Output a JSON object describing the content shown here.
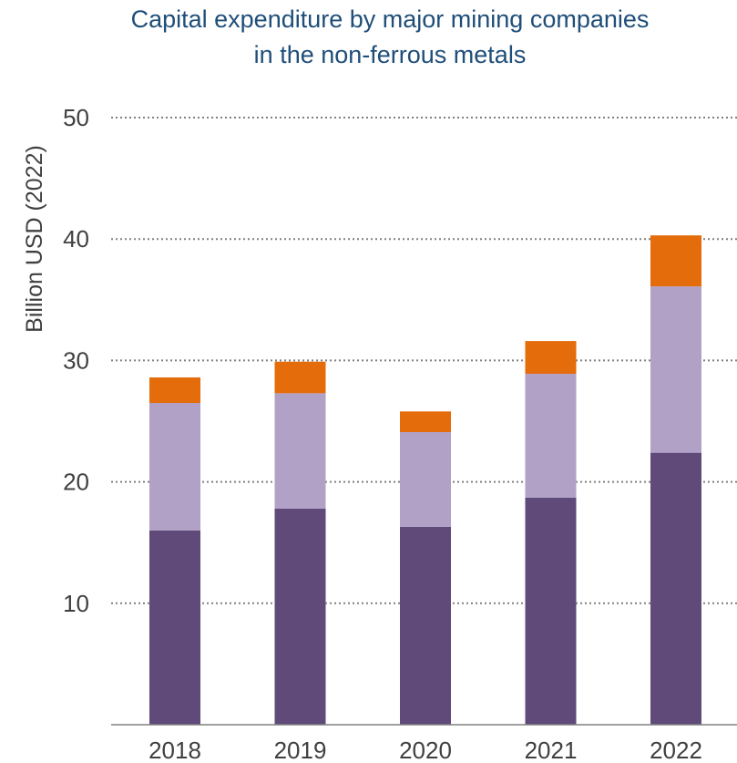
{
  "chart_data": {
    "type": "bar",
    "stacked": true,
    "title_lines": [
      "Capital expenditure by major mining companies",
      "in the non-ferrous metals"
    ],
    "xlabel": "",
    "ylabel": "Billion USD (2022)",
    "categories": [
      "2018",
      "2019",
      "2020",
      "2021",
      "2022"
    ],
    "y_ticks": [
      "10",
      "20",
      "30",
      "40",
      "50"
    ],
    "y_tick_values": [
      10,
      20,
      30,
      40,
      50
    ],
    "ylim": [
      0,
      50
    ],
    "grid": true,
    "grid_style": "dotted",
    "legend": "none",
    "series": [
      {
        "values": [
          16.0,
          17.8,
          16.3,
          18.7,
          22.4
        ],
        "color": "#5f4a7a"
      },
      {
        "values": [
          10.5,
          9.5,
          7.8,
          10.2,
          13.7
        ],
        "color": "#b1a1c7"
      },
      {
        "values": [
          2.1,
          2.6,
          1.7,
          2.7,
          4.2
        ],
        "color": "#e46c0a"
      }
    ],
    "colors": {
      "title": "#1f4e79",
      "text": "#404040",
      "grid": "#808080",
      "axis": "#808080"
    }
  }
}
